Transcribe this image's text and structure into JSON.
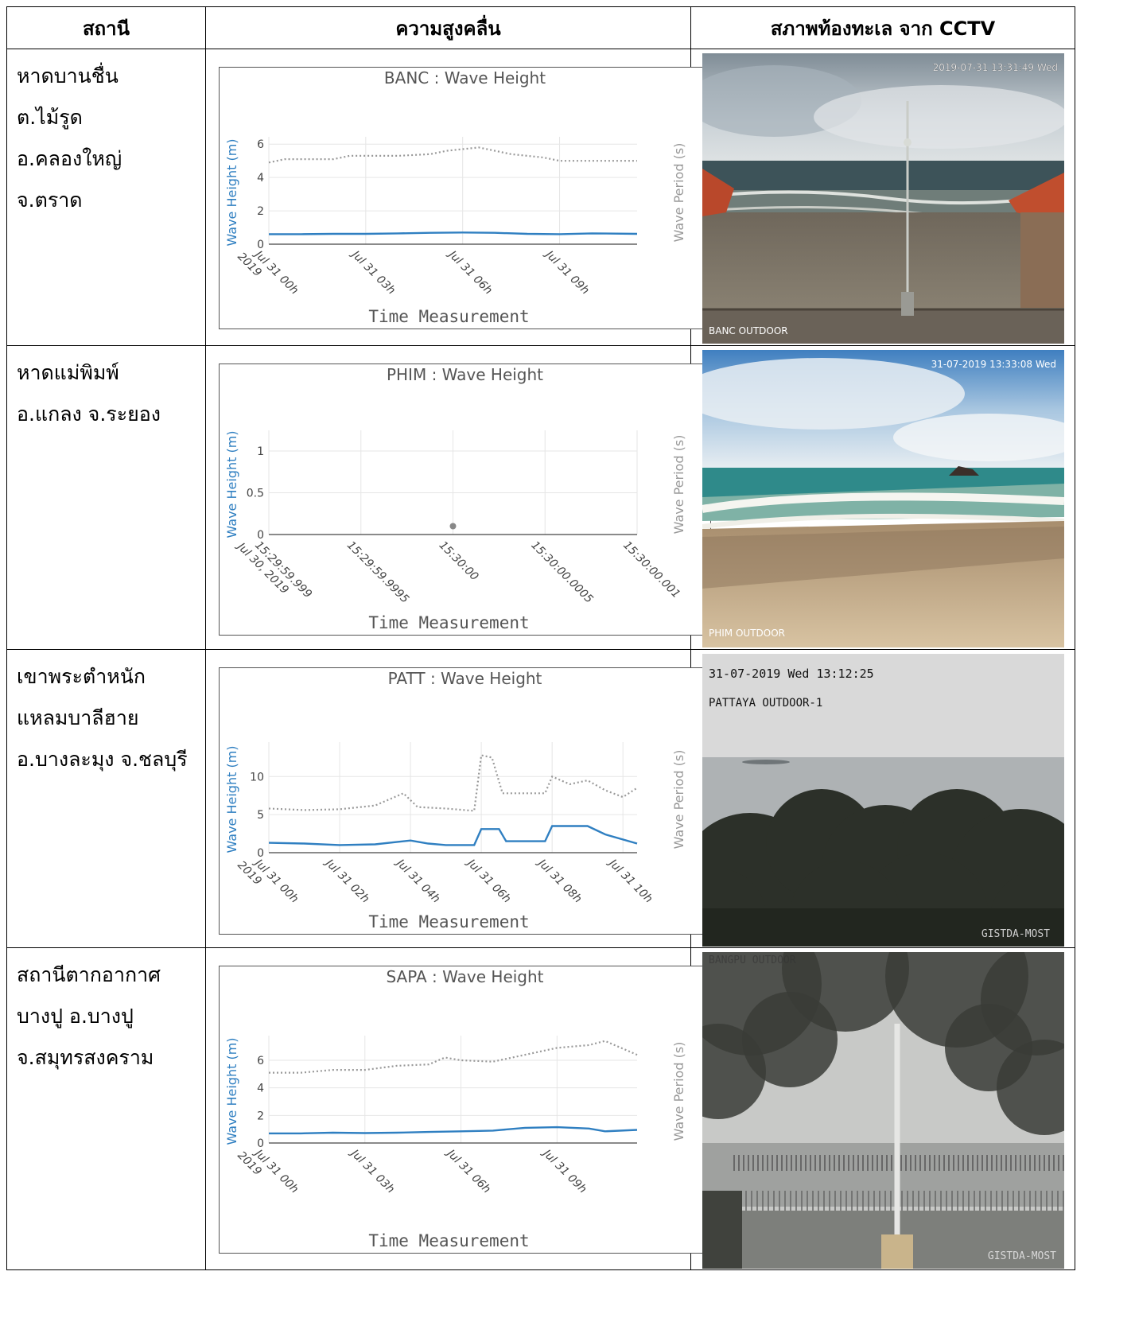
{
  "headers": {
    "station": "สถานี",
    "wave": "ความสูงคลื่น",
    "cctv": "สภาพท้องทะเล จาก CCTV"
  },
  "colors": {
    "wave_height": "#2f7fc1",
    "wave_period": "#999999",
    "axis_text": "#444444",
    "grid": "#e6e6e6"
  },
  "rows": [
    {
      "station_lines": [
        "หาดบานชื่น",
        "ต.ไม้รูด",
        "อ.คลองใหญ่",
        "จ.ตราด"
      ],
      "cctv": {
        "timestamp": "2019-07-31 13:31:49 Wed",
        "label": "BANC OUTDOOR",
        "scene": "beach-rainy"
      },
      "chart": {
        "title": "BANC : Wave Height",
        "xlabel": "Time Measurement",
        "ylabel": "Wave Height (m)",
        "y2label": "Wave Period (s)",
        "yticks": [
          "0",
          "2",
          "4",
          "6"
        ],
        "xticks": [
          "Jul 31 00h|2019",
          "Jul 31 03h",
          "Jul 31 06h",
          "Jul 31 09h"
        ]
      }
    },
    {
      "station_lines": [
        "หาดแม่พิมพ์",
        "อ.แกลง จ.ระยอง"
      ],
      "cctv": {
        "timestamp": "31-07-2019 13:33:08 Wed",
        "label": "PHIM OUTDOOR",
        "scene": "beach-sunny"
      },
      "chart": {
        "title": "PHIM : Wave Height",
        "xlabel": "Time Measurement",
        "ylabel": "Wave Height (m)",
        "y2label": "Wave Period (s)",
        "yticks": [
          "0",
          "0.5",
          "1"
        ],
        "xticks": [
          "15:29:59.999|Jul 30, 2019",
          "15:29:59.9995",
          "15:30:00",
          "15:30:00.0005",
          "15:30:00.001"
        ]
      }
    },
    {
      "station_lines": [
        "เขาพระตำหนัก",
        "แหลมบาลีฮาย",
        "อ.บางละมุง จ.ชลบุรี"
      ],
      "cctv": {
        "timestamp": "31-07-2019 Wed 13:12:25",
        "label": "PATTAYA OUTDOOR-1",
        "watermark": "GISTDA-MOST",
        "scene": "sea-trees"
      },
      "chart": {
        "title": "PATT : Wave Height",
        "xlabel": "Time Measurement",
        "ylabel": "Wave Height (m)",
        "y2label": "Wave Period (s)",
        "yticks": [
          "0",
          "5",
          "10"
        ],
        "xticks": [
          "Jul 31 00h|2019",
          "Jul 31 02h",
          "Jul 31 04h",
          "Jul 31 06h",
          "Jul 31 08h",
          "Jul 31 10h"
        ]
      }
    },
    {
      "station_lines": [
        "สถานีตากอากาศ",
        "บางปู อ.บางปู",
        "จ.สมุทรสงคราม"
      ],
      "cctv": {
        "label": "BANGPU OUTDOOR",
        "watermark": "GISTDA-MOST",
        "scene": "pier-trees"
      },
      "chart": {
        "title": "SAPA : Wave Height",
        "xlabel": "Time Measurement",
        "ylabel": "Wave Height (m)",
        "y2label": "Wave Period (s)",
        "yticks": [
          "0",
          "2",
          "4",
          "6"
        ],
        "xticks": [
          "Jul 31 00h|2019",
          "Jul 31 03h",
          "Jul 31 06h",
          "Jul 31 09h"
        ]
      }
    }
  ],
  "chart_data": [
    {
      "type": "line",
      "title": "BANC : Wave Height",
      "xlabel": "Time Measurement",
      "ylabel": "Wave Height (m)",
      "y2label": "Wave Period (s)",
      "xrange_hours": [
        0,
        11.4
      ],
      "ylim": [
        0,
        6.2
      ],
      "series": [
        {
          "name": "Wave Height (m)",
          "style": "solid",
          "x": [
            0,
            1,
            2,
            3,
            4,
            5,
            6,
            7,
            8,
            9,
            10,
            11.4
          ],
          "y": [
            0.6,
            0.6,
            0.62,
            0.62,
            0.65,
            0.68,
            0.7,
            0.68,
            0.62,
            0.6,
            0.65,
            0.62
          ]
        },
        {
          "name": "Wave Period (s)",
          "style": "dotted",
          "x": [
            0,
            0.5,
            2,
            2.5,
            4,
            5,
            5.5,
            6.5,
            7.5,
            8.5,
            9,
            11.4
          ],
          "y": [
            4.9,
            5.1,
            5.1,
            5.3,
            5.3,
            5.4,
            5.6,
            5.8,
            5.4,
            5.2,
            5.0,
            5.0
          ]
        }
      ]
    },
    {
      "type": "scatter",
      "title": "PHIM : Wave Height",
      "xlabel": "Time Measurement",
      "ylabel": "Wave Height (m)",
      "y2label": "Wave Period (s)",
      "ylim": [
        0,
        1.2
      ],
      "series": [
        {
          "name": "Wave Height (m)",
          "x": [
            "15:30:00"
          ],
          "y": [
            0.1
          ]
        }
      ]
    },
    {
      "type": "line",
      "title": "PATT : Wave Height",
      "xlabel": "Time Measurement",
      "ylabel": "Wave Height (m)",
      "y2label": "Wave Period (s)",
      "xrange_hours": [
        0,
        10.4
      ],
      "ylim": [
        0,
        14
      ],
      "series": [
        {
          "name": "Wave Height (m)",
          "style": "solid",
          "x": [
            0,
            1,
            2,
            3,
            4,
            4.5,
            5,
            5.8,
            6,
            6.5,
            6.7,
            7,
            7.8,
            8,
            9,
            9.5,
            10.4
          ],
          "y": [
            1.3,
            1.2,
            1.0,
            1.1,
            1.6,
            1.2,
            1.0,
            1.0,
            3.1,
            3.1,
            1.5,
            1.5,
            1.5,
            3.5,
            3.5,
            2.4,
            1.2
          ]
        },
        {
          "name": "Wave Period (s)",
          "style": "dotted",
          "x": [
            0,
            1,
            2,
            3,
            3.8,
            4.2,
            5,
            5.8,
            6,
            6.3,
            6.6,
            7,
            7.8,
            8,
            8.5,
            9,
            9.5,
            10,
            10.4
          ],
          "y": [
            5.8,
            5.6,
            5.7,
            6.2,
            7.8,
            6.0,
            5.8,
            5.5,
            12.8,
            12.5,
            7.8,
            7.8,
            7.8,
            10.0,
            9.0,
            9.5,
            8.2,
            7.3,
            8.5
          ]
        }
      ]
    },
    {
      "type": "line",
      "title": "SAPA : Wave Height",
      "xlabel": "Time Measurement",
      "ylabel": "Wave Height (m)",
      "y2label": "Wave Period (s)",
      "xrange_hours": [
        0,
        11.5
      ],
      "ylim": [
        0,
        7.5
      ],
      "series": [
        {
          "name": "Wave Height (m)",
          "style": "solid",
          "x": [
            0,
            1,
            2,
            3,
            4,
            5,
            6,
            7,
            8,
            9,
            10,
            10.5,
            11.5
          ],
          "y": [
            0.7,
            0.7,
            0.75,
            0.72,
            0.75,
            0.8,
            0.85,
            0.9,
            1.1,
            1.15,
            1.05,
            0.85,
            0.95
          ]
        },
        {
          "name": "Wave Period (s)",
          "style": "dotted",
          "x": [
            0,
            1,
            2,
            3,
            4,
            5,
            5.5,
            6,
            7,
            8,
            9,
            10,
            10.5,
            11.5
          ],
          "y": [
            5.1,
            5.1,
            5.3,
            5.3,
            5.6,
            5.7,
            6.2,
            6.0,
            5.9,
            6.4,
            6.9,
            7.1,
            7.4,
            6.4
          ]
        }
      ]
    }
  ]
}
